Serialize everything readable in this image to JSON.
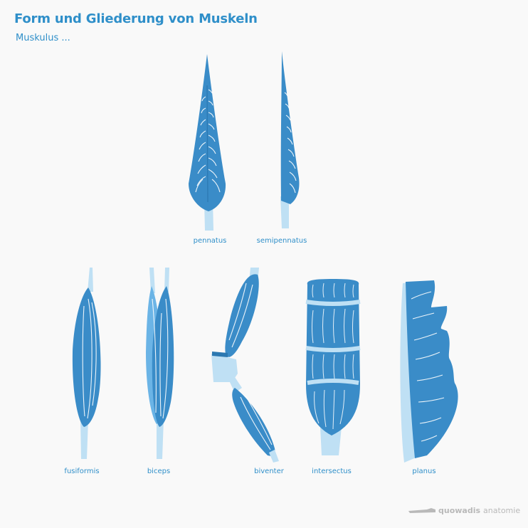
{
  "title": "Form und Gliederung von Muskeln",
  "subtitle": "Muskulus ...",
  "labels": {
    "pennatus": "pennatus",
    "semipennatus": "semipennatus",
    "fusiformis": "fusiformis",
    "biceps": "biceps",
    "biventer": "biventer",
    "intersectus": "intersectus",
    "planus": "planus"
  },
  "brand": {
    "strong": "quowadis",
    "light": "anatomie"
  },
  "colors": {
    "muscle": "#3a8cc8",
    "muscle_light": "#6bb4e6",
    "tendon": "#bfe0f4",
    "text": "#2f8fc9"
  }
}
